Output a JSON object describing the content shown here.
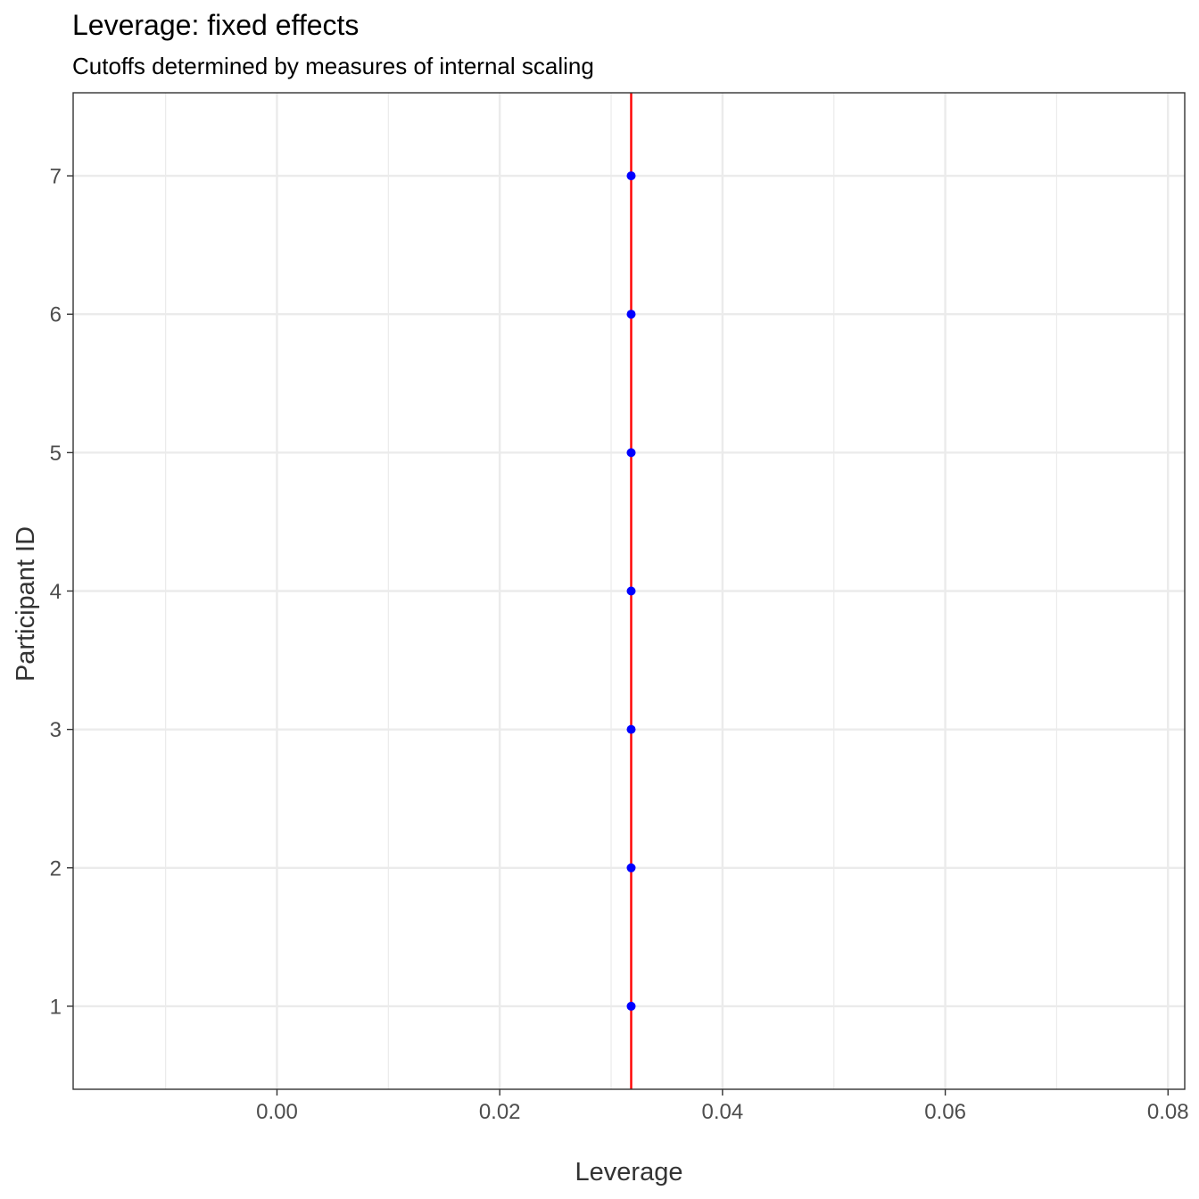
{
  "chart_data": {
    "type": "scatter",
    "title": "Leverage: fixed effects",
    "subtitle": "Cutoffs determined by measures of internal scaling",
    "xlabel": "Leverage",
    "ylabel": "Participant ID",
    "xlim": [
      -0.0183,
      0.0815
    ],
    "ylim": [
      0.4,
      7.6
    ],
    "x_ticks": [
      0.0,
      0.02,
      0.04,
      0.06,
      0.08
    ],
    "x_tick_labels": [
      "0.00",
      "0.02",
      "0.04",
      "0.06",
      "0.08"
    ],
    "x_minor_ticks": [
      -0.01,
      0.01,
      0.03,
      0.05,
      0.07
    ],
    "y_ticks": [
      1,
      2,
      3,
      4,
      5,
      6,
      7
    ],
    "y_tick_labels": [
      "1",
      "2",
      "3",
      "4",
      "5",
      "6",
      "7"
    ],
    "grid": true,
    "series": [
      {
        "color": "#0000ff",
        "points": [
          {
            "x": 0.0318,
            "y": 1
          },
          {
            "x": 0.0318,
            "y": 2
          },
          {
            "x": 0.0318,
            "y": 3
          },
          {
            "x": 0.0318,
            "y": 4
          },
          {
            "x": 0.0318,
            "y": 5
          },
          {
            "x": 0.0318,
            "y": 6
          },
          {
            "x": 0.0318,
            "y": 7
          }
        ]
      }
    ],
    "reference_lines": [
      {
        "orientation": "vertical",
        "x": 0.0318,
        "color": "#ff0000"
      }
    ]
  }
}
